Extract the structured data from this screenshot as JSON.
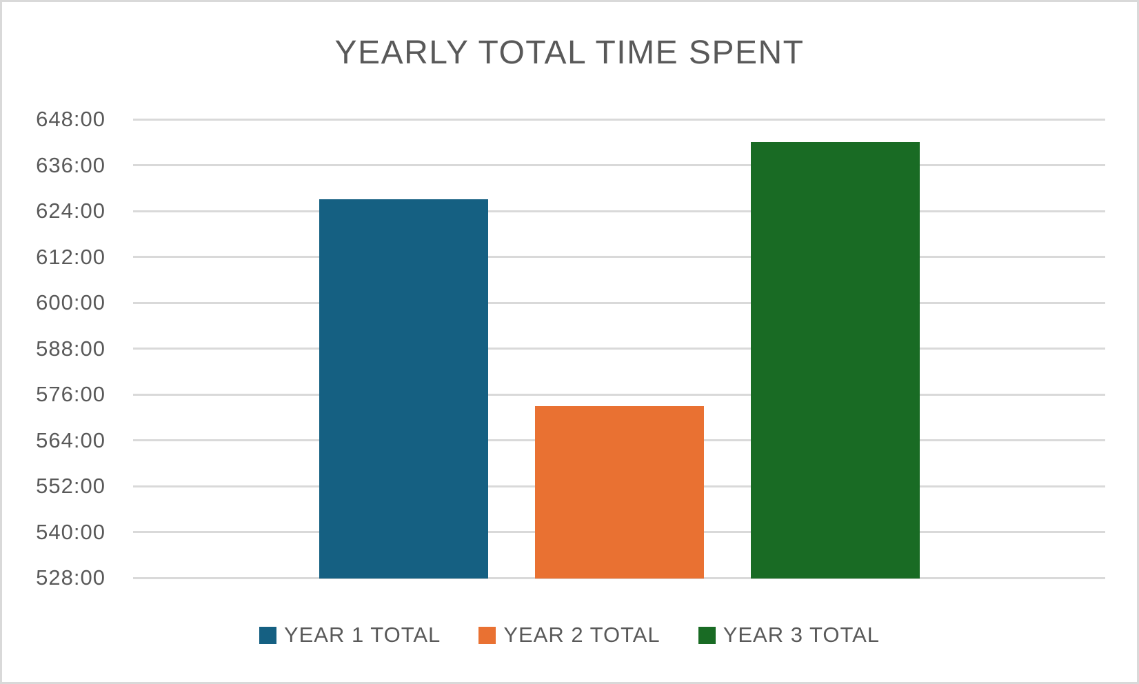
{
  "chart_data": {
    "type": "bar",
    "title": "YEARLY TOTAL TIME SPENT",
    "categories": [
      ""
    ],
    "series": [
      {
        "name": "YEAR 1 TOTAL",
        "value_hours": 627,
        "value_label": "627:00",
        "color": "#156082"
      },
      {
        "name": "YEAR 2 TOTAL",
        "value_hours": 573,
        "value_label": "573:00",
        "color": "#E97132"
      },
      {
        "name": "YEAR 3 TOTAL",
        "value_hours": 642,
        "value_label": "642:00",
        "color": "#196B24"
      }
    ],
    "y_axis": {
      "min_hours": 528,
      "max_hours": 648,
      "tick_step_hours": 12,
      "tick_labels": [
        "648:00",
        "636:00",
        "624:00",
        "612:00",
        "600:00",
        "588:00",
        "576:00",
        "564:00",
        "552:00",
        "540:00",
        "528:00"
      ],
      "format": "hours:minutes"
    },
    "x_axis": {
      "labels_visible": false
    },
    "legend": {
      "position": "bottom",
      "entries": [
        "YEAR 1 TOTAL",
        "YEAR 2 TOTAL",
        "YEAR 3 TOTAL"
      ]
    },
    "grid": true
  },
  "colors": {
    "title_text": "#595959",
    "axis_text": "#595959",
    "gridline": "#D9D9D9",
    "frame_border": "#D9D9D9",
    "background": "#FFFFFF"
  }
}
